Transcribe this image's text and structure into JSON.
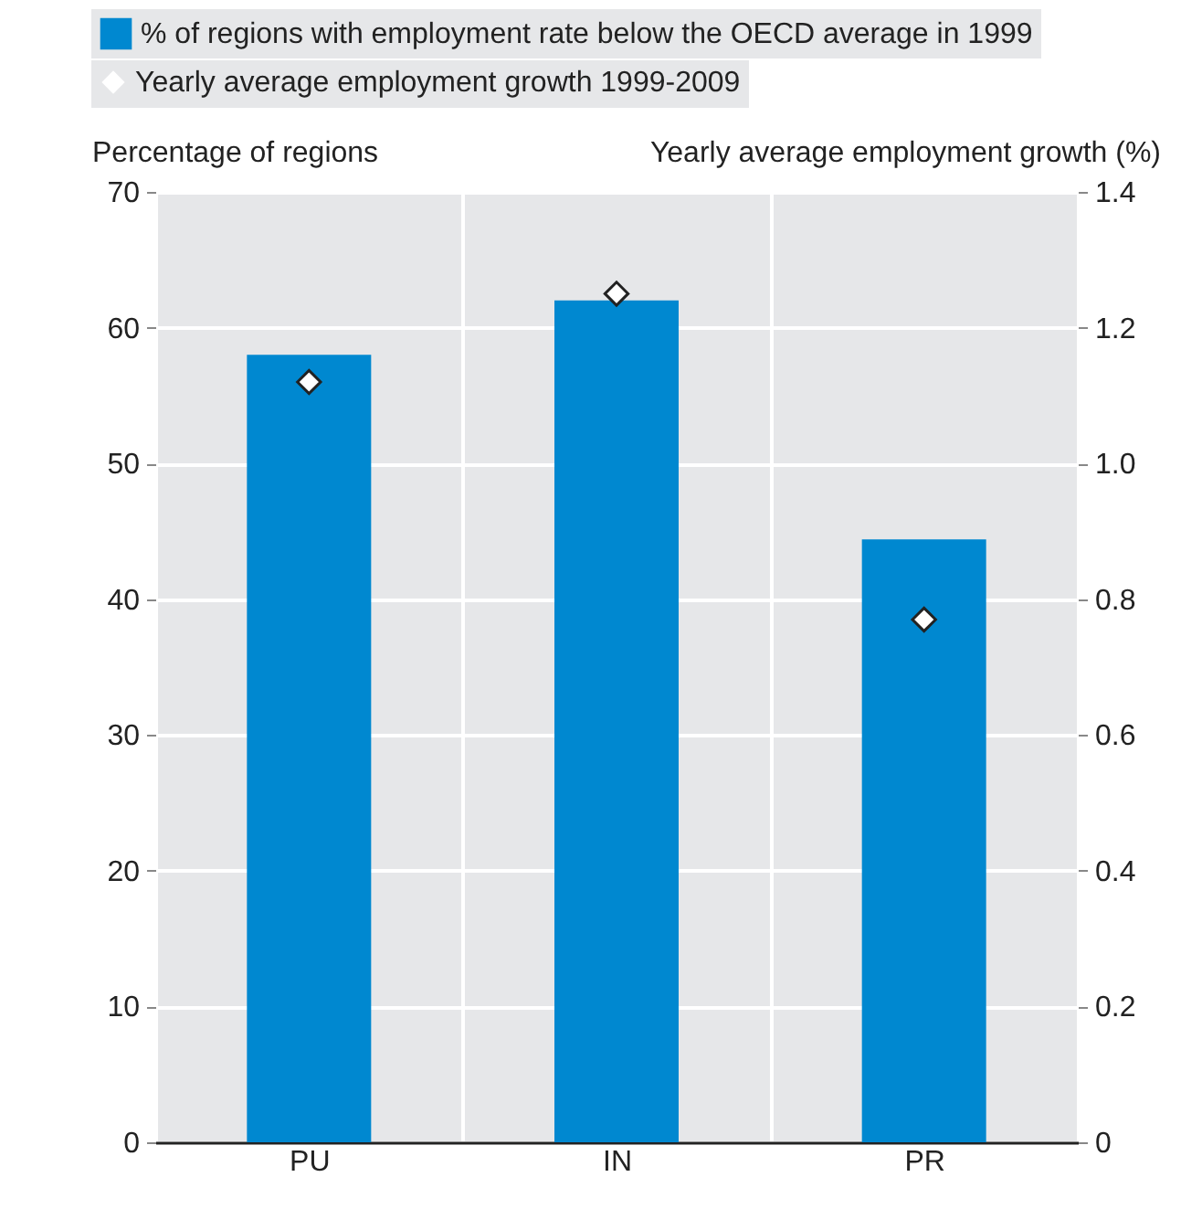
{
  "chart_data": {
    "type": "bar",
    "categories": [
      "PU",
      "IN",
      "PR"
    ],
    "series": [
      {
        "name": "% of regions with employment rate below the OECD average in 1999",
        "color": "#0088d0",
        "values": [
          58,
          62,
          44.4
        ]
      },
      {
        "name": "Yearly average employment growth 1999-2009",
        "type": "scatter",
        "axis": "y2",
        "color": "#ffffff",
        "values": [
          1.12,
          1.25,
          0.77
        ]
      }
    ],
    "ylabel": "Percentage of regions",
    "y2label": "Yearly average employment growth (%)",
    "ylim": [
      0,
      70
    ],
    "yticks": [
      0,
      10,
      20,
      30,
      40,
      50,
      60,
      70
    ],
    "y2lim": [
      0,
      1.4
    ],
    "y2ticks": [
      0,
      0.2,
      0.4,
      0.6,
      0.8,
      {
        "value": 1,
        "label": "1.0"
      },
      1.2,
      1.4
    ],
    "grid": true,
    "legend": "top left",
    "marker": "diamond"
  }
}
